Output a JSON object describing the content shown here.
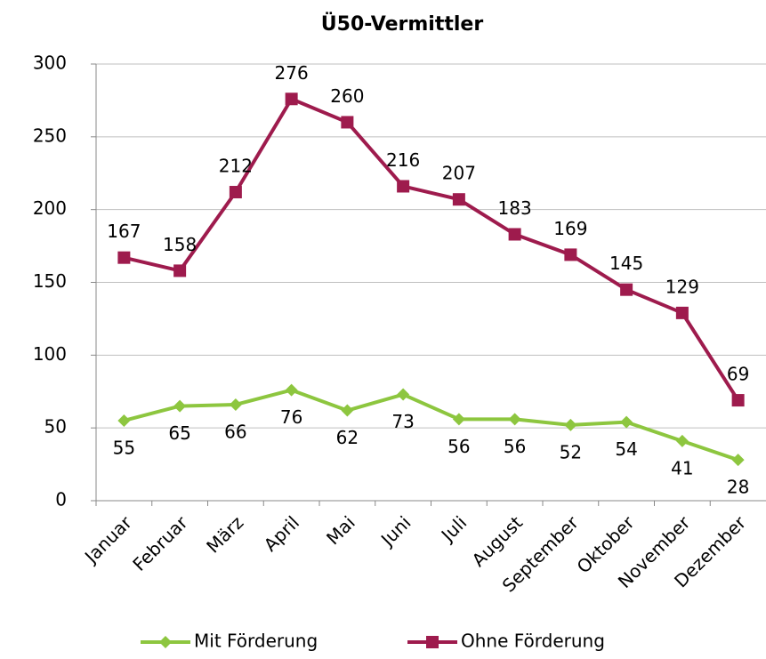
{
  "chart_data": {
    "type": "line",
    "title": "Ü50-Vermittler",
    "categories": [
      "Januar",
      "Februar",
      "März",
      "April",
      "Mai",
      "Juni",
      "Juli",
      "August",
      "September",
      "Oktober",
      "November",
      "Dezember"
    ],
    "series": [
      {
        "name": "Mit Förderung",
        "color": "#8dc63f",
        "marker": "diamond",
        "label_position": "below",
        "values": [
          55,
          65,
          66,
          76,
          62,
          73,
          56,
          56,
          52,
          54,
          41,
          28
        ]
      },
      {
        "name": "Ohne Förderung",
        "color": "#9e1b4d",
        "marker": "square",
        "label_position": "above",
        "values": [
          167,
          158,
          212,
          276,
          260,
          216,
          207,
          183,
          169,
          145,
          129,
          69
        ]
      }
    ],
    "ylim": [
      0,
      300
    ],
    "yticks": [
      0,
      50,
      100,
      150,
      200,
      250,
      300
    ],
    "grid": true,
    "legend": "bottom"
  }
}
